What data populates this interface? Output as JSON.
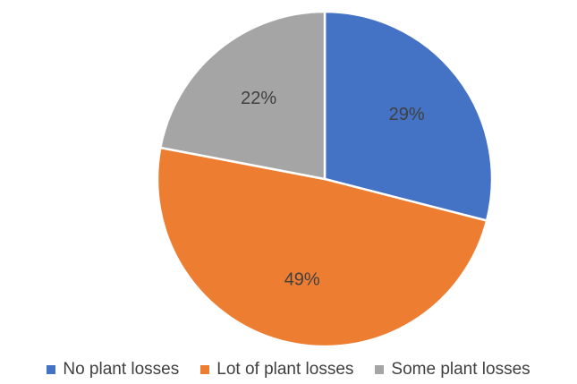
{
  "chart_data": {
    "type": "pie",
    "categories": [
      "No plant losses",
      "Lot of plant losses",
      "Some plant losses"
    ],
    "values": [
      29,
      49,
      22
    ],
    "data_labels": [
      "29%",
      "49%",
      "22%"
    ],
    "colors": [
      "#4472C4",
      "#ED7D31",
      "#A5A5A5"
    ],
    "title": "",
    "legend_position": "bottom"
  }
}
